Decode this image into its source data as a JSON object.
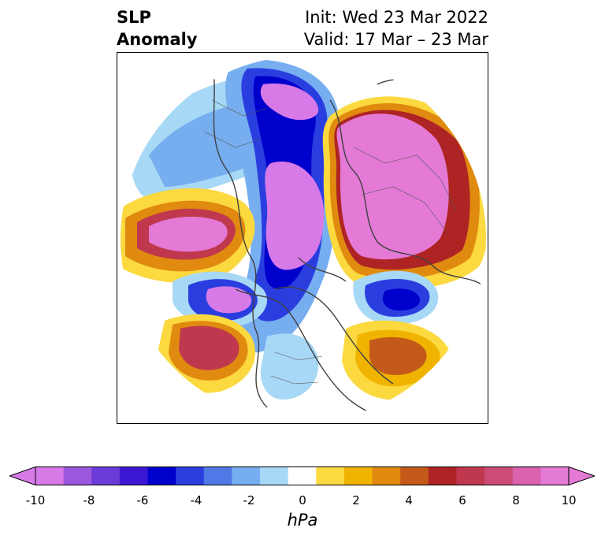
{
  "title": {
    "left_line1": "SLP",
    "left_line2": "Anomaly",
    "right_line1": "Init: Wed 23 Mar 2022",
    "right_line2": "Valid: 17 Mar – 23 Mar"
  },
  "colorbar": {
    "units": "hPa",
    "min": -10,
    "max": 10,
    "ticks": [
      "-10",
      "-8",
      "-6",
      "-4",
      "-2",
      "0",
      "2",
      "4",
      "6",
      "8",
      "10"
    ],
    "colors": [
      "#d77ae8",
      "#9b57de",
      "#6c3bd8",
      "#3b17d4",
      "#0000cc",
      "#2a3ee0",
      "#4f79e6",
      "#77aef0",
      "#a7d8f6",
      "#ffffff",
      "#fbd93f",
      "#f0b400",
      "#e08a10",
      "#c45a1a",
      "#ae2424",
      "#c0384d",
      "#cc4c78",
      "#da62ae",
      "#e47ad6"
    ]
  },
  "map": {
    "projection": "north polar stereographic",
    "layers": [
      "slp-anomaly-fill",
      "coastlines",
      "country-borders",
      "state-borders"
    ]
  }
}
